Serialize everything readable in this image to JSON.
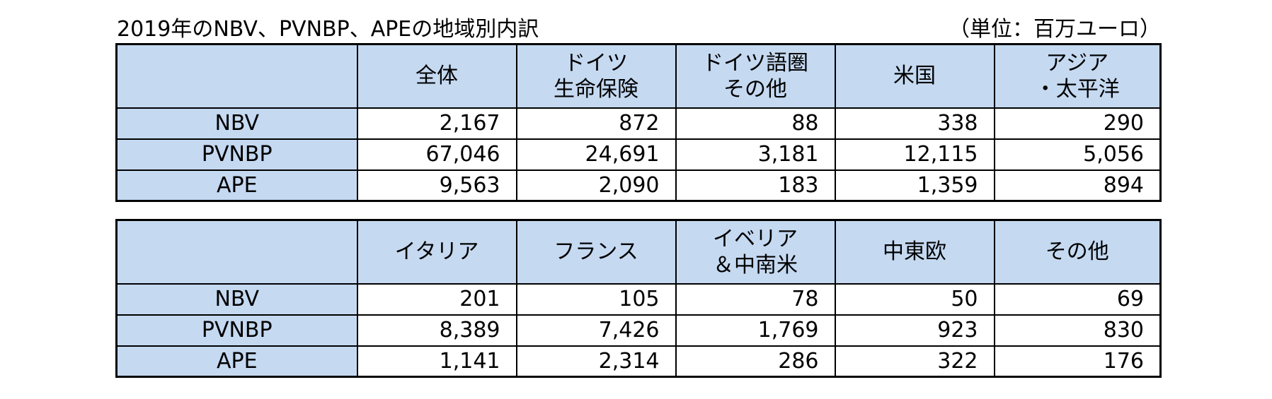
{
  "title": "2019年のNBV、PVNBP、APEの地域別内訳",
  "unit": "（単位：百万ユーロ）",
  "table1": {
    "headers": [
      {
        "lines": [
          ""
        ]
      },
      {
        "lines": [
          "全体"
        ]
      },
      {
        "lines": [
          "ドイツ",
          "生命保険"
        ]
      },
      {
        "lines": [
          "ドイツ語圏",
          "その他"
        ]
      },
      {
        "lines": [
          "米国"
        ]
      },
      {
        "lines": [
          "アジア",
          "・太平洋"
        ]
      }
    ],
    "rows": [
      {
        "label": "NBV",
        "values": [
          "2,167",
          "872",
          "88",
          "338",
          "290"
        ]
      },
      {
        "label": "PVNBP",
        "values": [
          "67,046",
          "24,691",
          "3,181",
          "12,115",
          "5,056"
        ]
      },
      {
        "label": "APE",
        "values": [
          "9,563",
          "2,090",
          "183",
          "1,359",
          "894"
        ]
      }
    ]
  },
  "table2": {
    "headers": [
      {
        "lines": [
          ""
        ]
      },
      {
        "lines": [
          "イタリア"
        ]
      },
      {
        "lines": [
          "フランス"
        ]
      },
      {
        "lines": [
          "イベリア",
          "＆中南米"
        ]
      },
      {
        "lines": [
          "中東欧"
        ]
      },
      {
        "lines": [
          "その他"
        ]
      }
    ],
    "rows": [
      {
        "label": "NBV",
        "values": [
          "201",
          "105",
          "78",
          "50",
          "69"
        ]
      },
      {
        "label": "PVNBP",
        "values": [
          "8,389",
          "7,426",
          "1,769",
          "923",
          "830"
        ]
      },
      {
        "label": "APE",
        "values": [
          "1,141",
          "2,314",
          "286",
          "322",
          "176"
        ]
      }
    ]
  }
}
